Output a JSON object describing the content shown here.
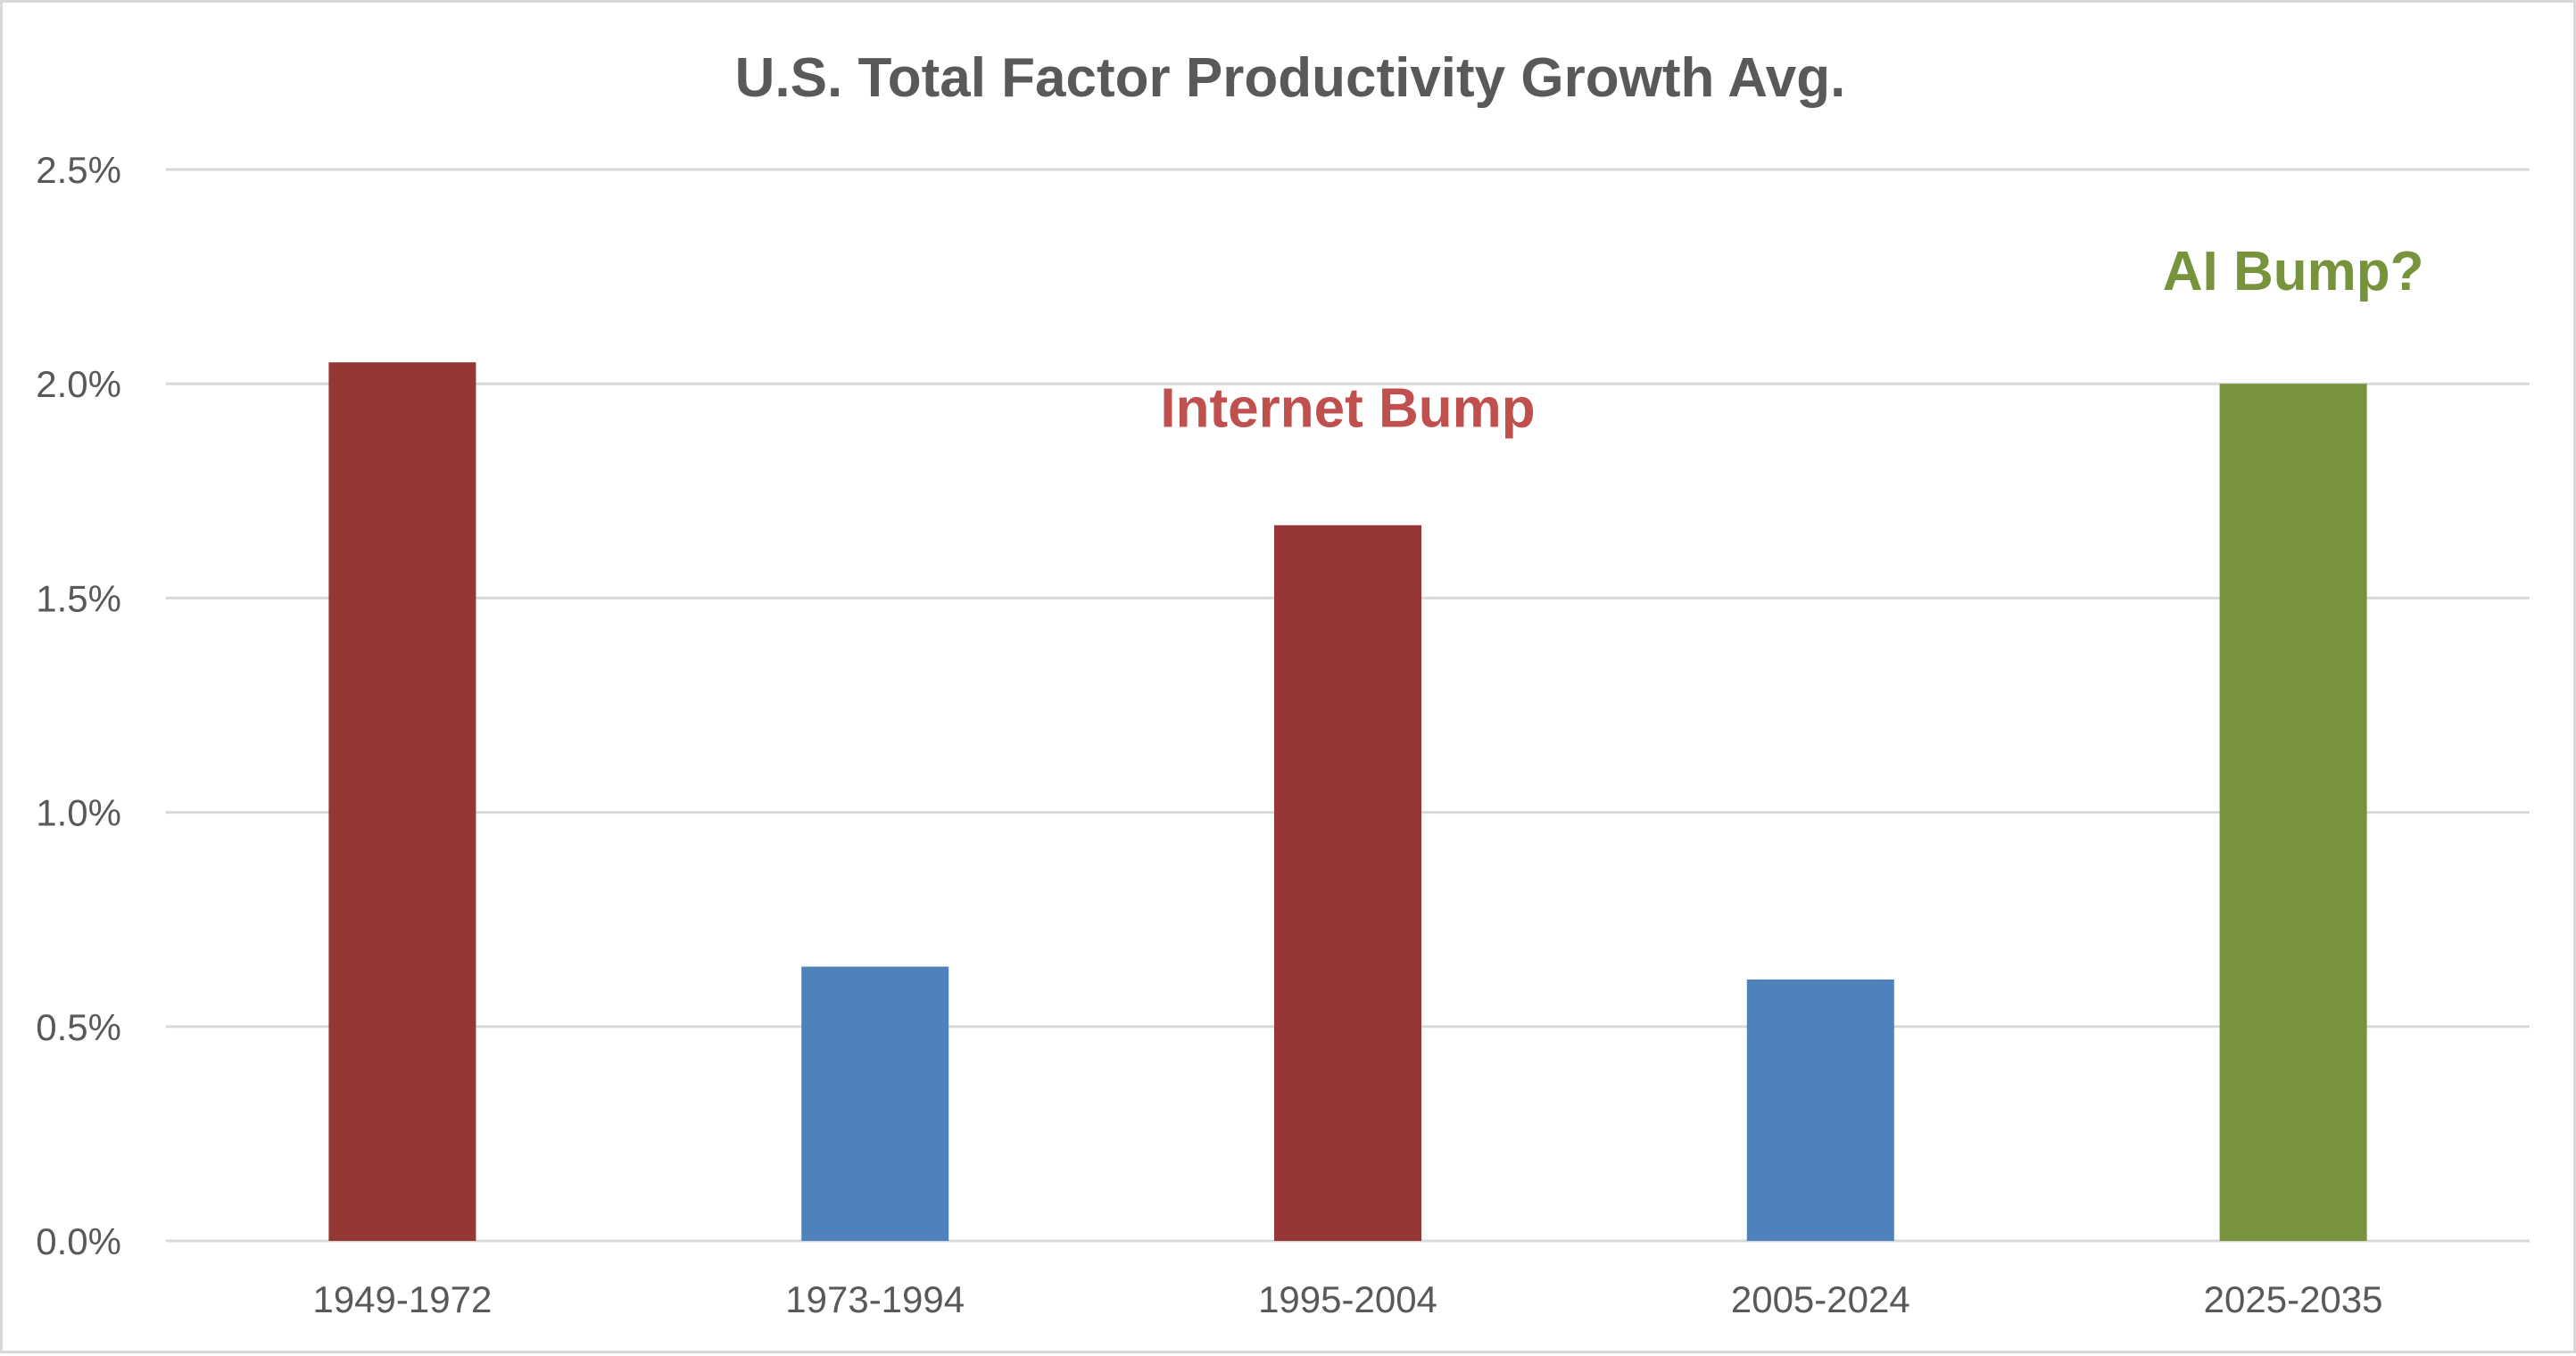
{
  "chart_data": {
    "type": "bar",
    "title": "U.S. Total Factor Productivity Growth Avg.",
    "xlabel": "",
    "ylabel": "",
    "categories": [
      "1949-1972",
      "1973-1994",
      "1995-2004",
      "2005-2024",
      "2025-2035"
    ],
    "values": [
      2.05,
      0.64,
      1.67,
      0.61,
      2.0
    ],
    "bar_colors": [
      "#953735",
      "#4f81bd",
      "#953735",
      "#4f81bd",
      "#77933c"
    ],
    "ylim": [
      0,
      2.5
    ],
    "yticks": [
      0.0,
      0.5,
      1.0,
      1.5,
      2.0,
      2.5
    ],
    "ytick_labels": [
      "0.0%",
      "0.5%",
      "1.0%",
      "1.5%",
      "2.0%",
      "2.5%"
    ],
    "grid": true,
    "legend": "none",
    "annotations": [
      {
        "text": "Internet Bump",
        "category": "1995-2004",
        "color": "#c0504d"
      },
      {
        "text": "AI Bump?",
        "category": "2025-2035",
        "color": "#77933c"
      }
    ]
  }
}
